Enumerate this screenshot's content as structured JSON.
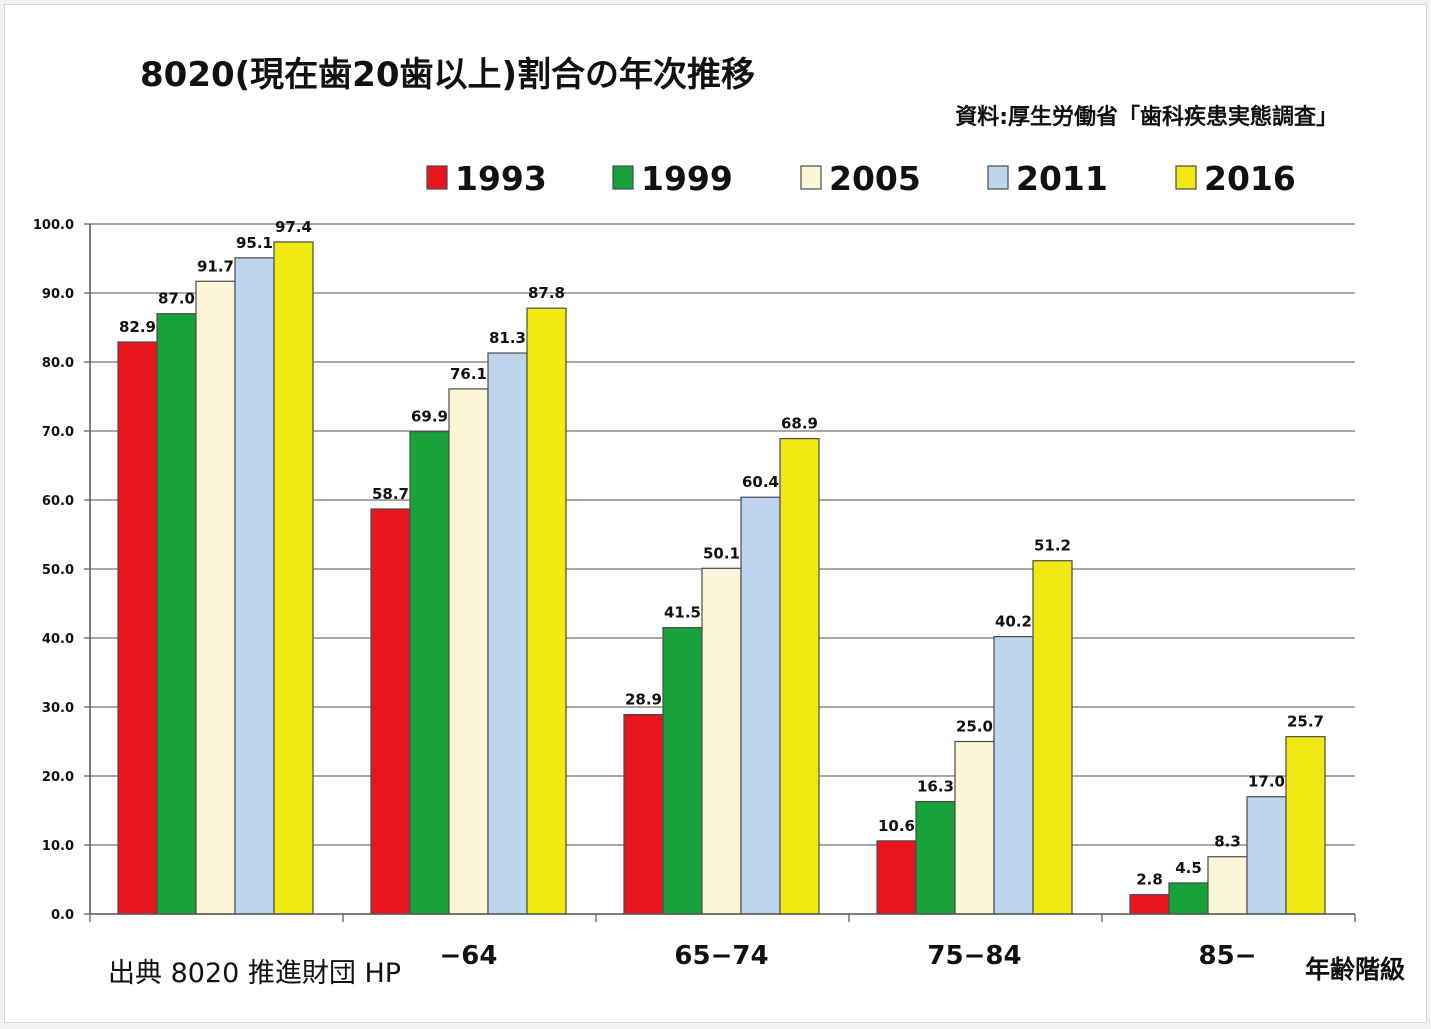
{
  "chart_data": {
    "type": "bar",
    "title": "8020(現在歯20歯以上)割合の年次推移",
    "source": "資料:厚生労働省「歯科疾患実態調査」",
    "credit": "出典 8020 推進財団 HP",
    "xlabel": "年齢階級",
    "ylabel": "",
    "categories": [
      "",
      "−64",
      "65−74",
      "75−84",
      "85−"
    ],
    "ylim": [
      0,
      100
    ],
    "yticks": [
      "0.0",
      "10.0",
      "20.0",
      "30.0",
      "40.0",
      "50.0",
      "60.0",
      "70.0",
      "80.0",
      "90.0",
      "100.0"
    ],
    "grid": true,
    "legend_position": "top",
    "series": [
      {
        "name": "1993",
        "color": "#e8141e",
        "values": [
          82.9,
          58.7,
          28.9,
          10.6,
          2.8
        ]
      },
      {
        "name": "1999",
        "color": "#17a23c",
        "values": [
          87.0,
          69.9,
          41.5,
          16.3,
          4.5
        ]
      },
      {
        "name": "2005",
        "color": "#fdf5d8",
        "values": [
          91.7,
          76.1,
          50.1,
          25.0,
          8.3
        ]
      },
      {
        "name": "2011",
        "color": "#bdd6ee",
        "values": [
          95.1,
          81.3,
          60.4,
          40.2,
          17.0
        ]
      },
      {
        "name": "2016",
        "color": "#f1ea12",
        "values": [
          97.4,
          87.8,
          68.9,
          51.2,
          25.7
        ]
      }
    ],
    "data_labels": [
      [
        "82.9",
        "58.7",
        "28.9",
        "10.6",
        "2.8"
      ],
      [
        "87.0",
        "69.9",
        "41.5",
        "16.3",
        "4.5"
      ],
      [
        "91.7",
        "76.1",
        "50.1",
        "25.0",
        "8.3"
      ],
      [
        "95.1",
        "81.3",
        "60.4",
        "40.2",
        "17.0"
      ],
      [
        "97.4",
        "87.8",
        "68.9",
        "51.2",
        "25.7"
      ]
    ]
  }
}
